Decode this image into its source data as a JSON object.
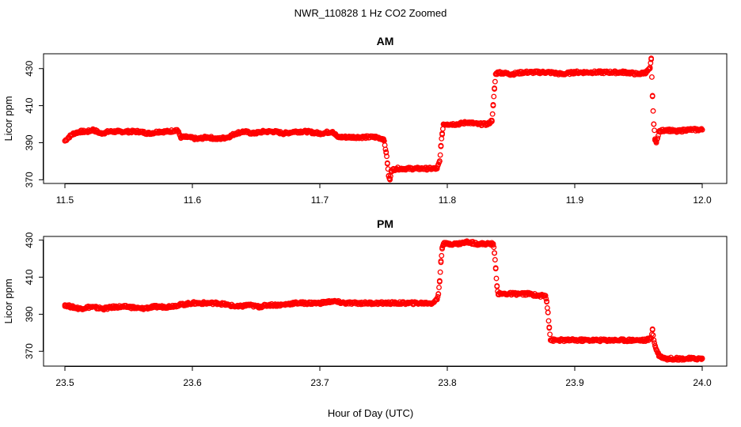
{
  "figure": {
    "suptitle": "NWR_110828  1 Hz CO2 Zoomed",
    "xlabel": "Hour of Day (UTC)",
    "marker_color": "#ff0000"
  },
  "chart_data": [
    {
      "type": "scatter",
      "title": "AM",
      "xlabel": "",
      "ylabel": "Licor ppm",
      "xlim": [
        11.5,
        12.0
      ],
      "ylim": [
        368,
        438
      ],
      "xticks": [
        11.5,
        11.6,
        11.7,
        11.8,
        11.9,
        12.0
      ],
      "xtick_labels": [
        "11.5",
        "11.6",
        "11.7",
        "11.8",
        "11.9",
        "12.0"
      ],
      "yticks": [
        370,
        390,
        410,
        430
      ],
      "ytick_labels": [
        "370",
        "390",
        "410",
        "430"
      ],
      "grid": false,
      "series": [
        {
          "color": "#ff0000",
          "x": [
            11.5,
            11.503,
            11.507,
            11.512,
            11.518,
            11.522,
            11.528,
            11.535,
            11.542,
            11.55,
            11.558,
            11.566,
            11.574,
            11.582,
            11.588,
            11.591,
            11.596,
            11.604,
            11.612,
            11.62,
            11.628,
            11.634,
            11.64,
            11.648,
            11.656,
            11.664,
            11.672,
            11.68,
            11.69,
            11.7,
            11.71,
            11.714,
            11.72,
            11.728,
            11.736,
            11.744,
            11.75,
            11.752,
            11.753,
            11.754,
            11.755,
            11.756,
            11.76,
            11.768,
            11.776,
            11.784,
            11.792,
            11.794,
            11.795,
            11.796,
            11.797,
            11.8,
            11.808,
            11.816,
            11.824,
            11.832,
            11.835,
            11.836,
            11.837,
            11.838,
            11.84,
            11.85,
            11.86,
            11.87,
            11.88,
            11.89,
            11.9,
            11.91,
            11.92,
            11.93,
            11.94,
            11.95,
            11.956,
            11.959,
            11.96,
            11.961,
            11.962,
            11.963,
            11.964,
            11.966,
            11.972,
            11.98,
            11.988,
            11.996,
            12.0
          ],
          "y": [
            391,
            393,
            395,
            396,
            396,
            397,
            395,
            396,
            396,
            396,
            396,
            395,
            396,
            396,
            397,
            393,
            393,
            392,
            393,
            392,
            393,
            395,
            396,
            395,
            396,
            396,
            395,
            396,
            396,
            395,
            396,
            393,
            393,
            393,
            393,
            393,
            392,
            385,
            379,
            372,
            370,
            375,
            376,
            376,
            376,
            376,
            376,
            380,
            388,
            395,
            400,
            400,
            400,
            401,
            400,
            400,
            402,
            410,
            419,
            427,
            428,
            427,
            428,
            428,
            428,
            427,
            428,
            428,
            428,
            428,
            428,
            427,
            428,
            430,
            435,
            415,
            400,
            392,
            390,
            396,
            397,
            396,
            397,
            397,
            397
          ]
        }
      ]
    },
    {
      "type": "scatter",
      "title": "PM",
      "xlabel": "",
      "ylabel": "Licor ppm",
      "xlim": [
        23.5,
        24.0
      ],
      "ylim": [
        362,
        432
      ],
      "xticks": [
        23.5,
        23.6,
        23.7,
        23.8,
        23.9,
        24.0
      ],
      "xtick_labels": [
        "23.5",
        "23.6",
        "23.7",
        "23.8",
        "23.9",
        "24.0"
      ],
      "yticks": [
        370,
        390,
        410,
        430
      ],
      "ytick_labels": [
        "370",
        "390",
        "410",
        "430"
      ],
      "grid": false,
      "series": [
        {
          "color": "#ff0000",
          "x": [
            23.5,
            23.505,
            23.512,
            23.52,
            23.53,
            23.54,
            23.55,
            23.56,
            23.57,
            23.58,
            23.59,
            23.6,
            23.61,
            23.62,
            23.628,
            23.636,
            23.644,
            23.652,
            23.66,
            23.67,
            23.68,
            23.69,
            23.7,
            23.71,
            23.72,
            23.73,
            23.74,
            23.75,
            23.76,
            23.77,
            23.78,
            23.788,
            23.792,
            23.793,
            23.794,
            23.795,
            23.796,
            23.797,
            23.8,
            23.808,
            23.816,
            23.824,
            23.83,
            23.836,
            23.837,
            23.838,
            23.839,
            23.84,
            23.848,
            23.856,
            23.864,
            23.872,
            23.877,
            23.878,
            23.879,
            23.88,
            23.881,
            23.886,
            23.896,
            23.906,
            23.916,
            23.926,
            23.936,
            23.946,
            23.956,
            23.96,
            23.961,
            23.962,
            23.963,
            23.964,
            23.966,
            23.968,
            23.972,
            23.98,
            23.988,
            23.996,
            24.0
          ],
          "y": [
            395,
            394,
            393,
            394,
            393,
            394,
            394,
            393,
            394,
            394,
            395,
            396,
            396,
            396,
            395,
            394,
            395,
            394,
            395,
            395,
            396,
            396,
            396,
            397,
            396,
            396,
            396,
            396,
            396,
            396,
            396,
            396,
            398,
            401,
            408,
            418,
            426,
            428,
            428,
            428,
            429,
            428,
            428,
            428,
            423,
            415,
            405,
            401,
            401,
            401,
            401,
            400,
            400,
            397,
            391,
            383,
            376,
            376,
            376,
            376,
            376,
            376,
            376,
            376,
            376,
            377,
            382,
            376,
            373,
            371,
            368,
            367,
            366,
            366,
            366,
            366,
            366
          ]
        }
      ]
    }
  ]
}
